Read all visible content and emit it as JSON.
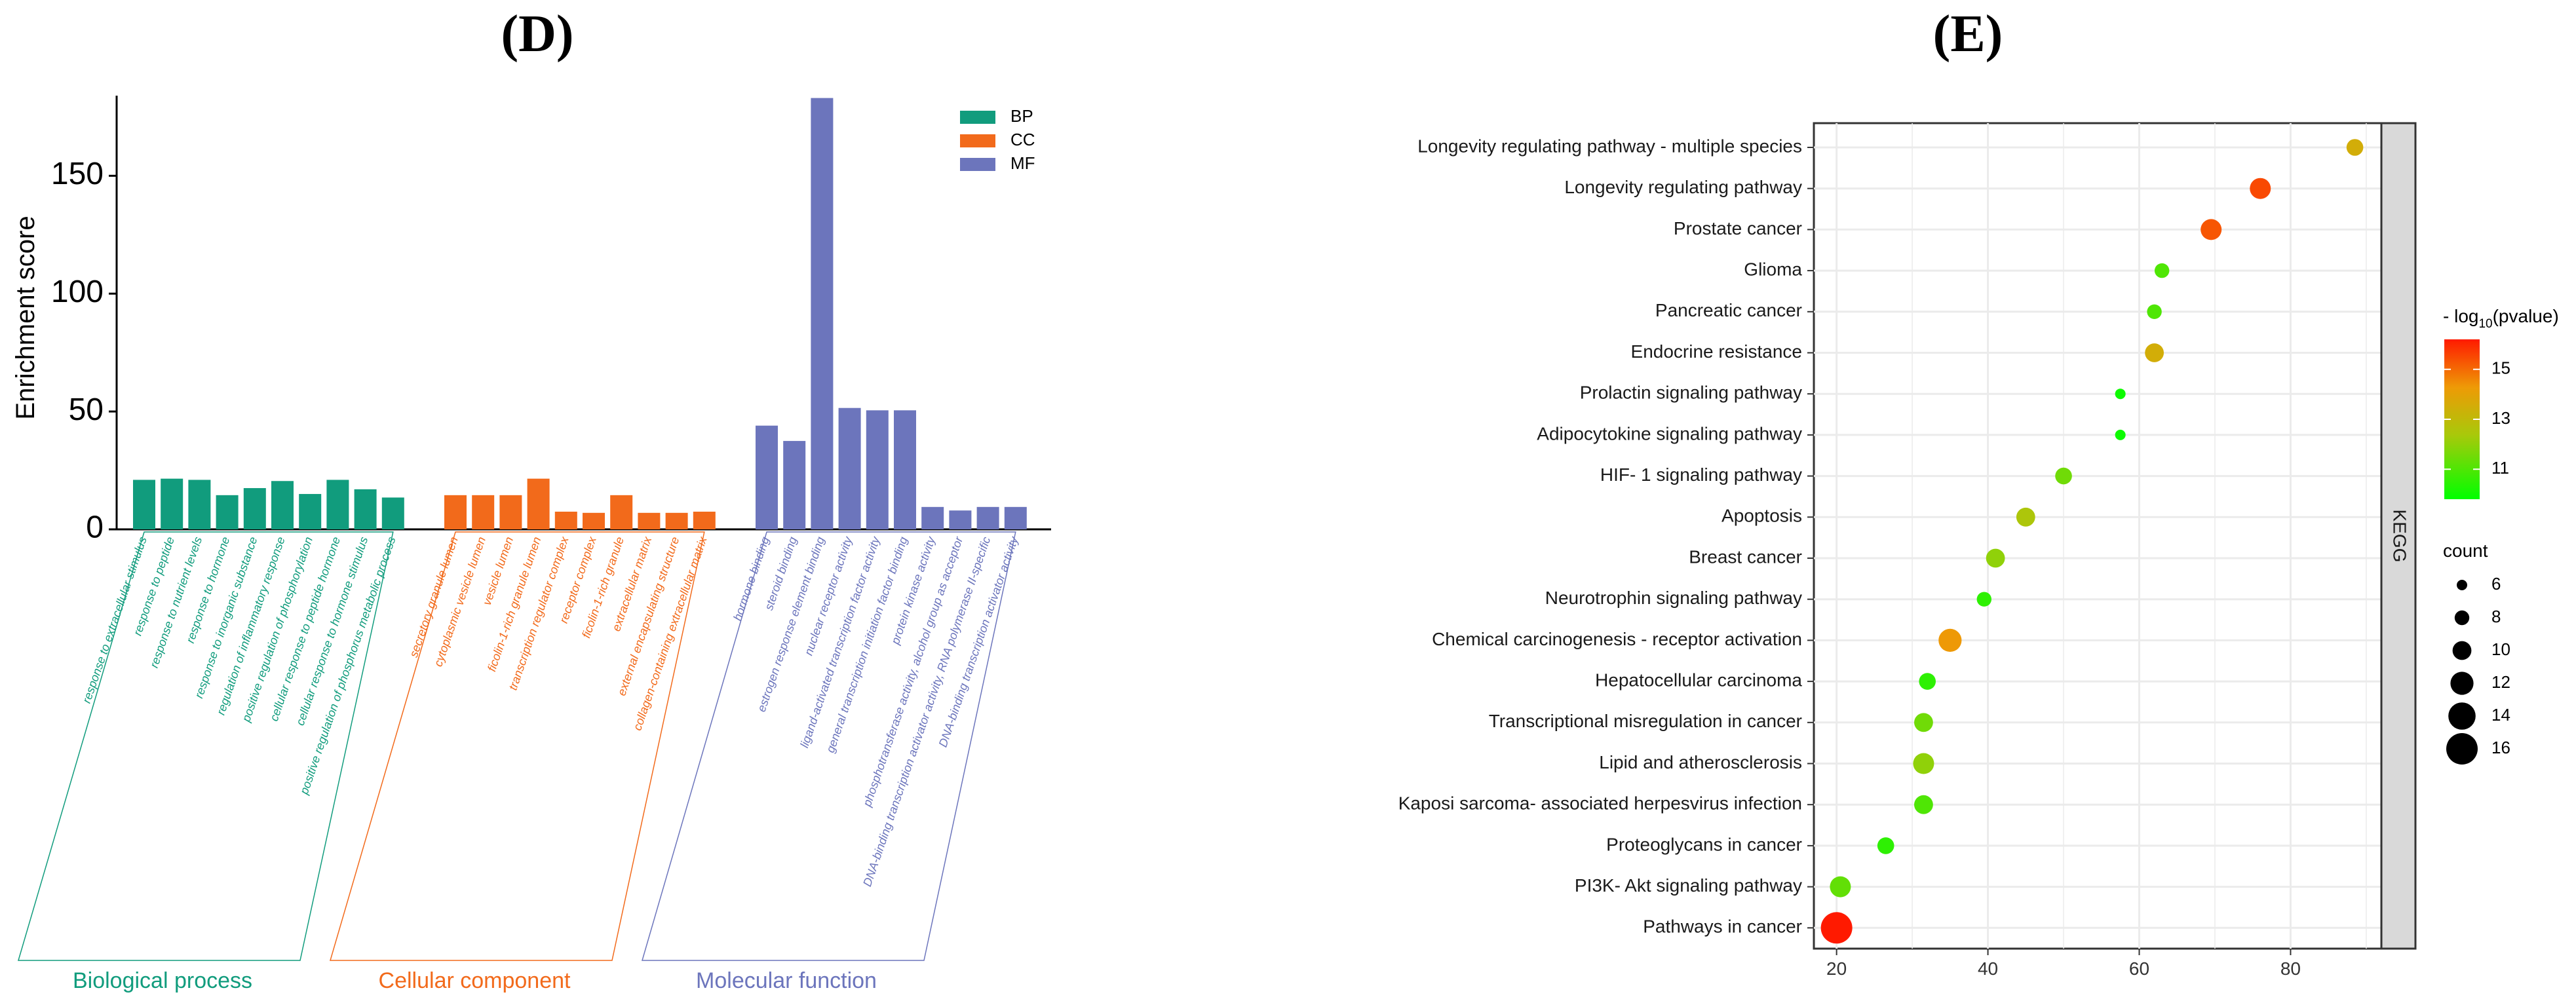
{
  "panels": {
    "d_label": "(D)",
    "e_label": "(E)"
  },
  "chart_data": [
    {
      "type": "bar",
      "title": "(D)",
      "ylabel": "Enrichment score",
      "xlabel": "",
      "ylim": [
        0,
        184
      ],
      "yticks": [
        0,
        50,
        100,
        150
      ],
      "grid": false,
      "legend_position": "top-right",
      "groups": [
        {
          "key": "BP",
          "name": "Biological process",
          "color": "#119c7d",
          "categories": [
            "response to extracellular stimulus",
            "response to peptide",
            "response to nutrient levels",
            "response to hormone",
            "response to inorganic substance",
            "regulation of inflammatory response",
            "positive regulation of phosphorylation",
            "cellular response to peptide hormone",
            "cellular response to hormone stimulus",
            "positive regulation of phosphorus metabolic process"
          ],
          "values": [
            21,
            21.5,
            21,
            14.5,
            17.5,
            20.5,
            15,
            21,
            17,
            13.5
          ]
        },
        {
          "key": "CC",
          "name": "Cellular component",
          "color": "#f26a1b",
          "categories": [
            "secretory granule lumen",
            "cytoplasmic vesicle lumen",
            "vesicle lumen",
            "ficolin-1-rich granule lumen",
            "transcription regulator complex",
            "receptor complex",
            "ficolin-1-rich granule",
            "extracellular matrix",
            "external encapsulating structure",
            "collagen-containing extracellular matrix"
          ],
          "values": [
            14.5,
            14.5,
            14.5,
            21.5,
            7.5,
            7,
            14.5,
            7,
            7,
            7.5
          ]
        },
        {
          "key": "MF",
          "name": "Molecular function",
          "color": "#6c75bc",
          "categories": [
            "hormone binding",
            "steroid binding",
            "estrogen response element binding",
            "nuclear receptor activity",
            "ligand-activated transcription factor activity",
            "general transcription initiation factor binding",
            "protein kinase activity",
            "phosphotransferase activity, alcohol group as acceptor",
            "DNA-binding transcription activator activity, RNA polymerase II-specific",
            "DNA-binding transcription activator activity"
          ],
          "values": [
            44,
            37.5,
            183,
            51.5,
            50.5,
            50.5,
            9.5,
            8,
            9.5,
            9.5
          ]
        }
      ],
      "legend": [
        {
          "label": "BP",
          "color": "#119c7d"
        },
        {
          "label": "CC",
          "color": "#f26a1b"
        },
        {
          "label": "MF",
          "color": "#6c75bc"
        }
      ]
    },
    {
      "type": "scatter",
      "title": "(E)",
      "facet_label": "KEGG",
      "xlim": [
        17,
        92
      ],
      "xticks": [
        20,
        40,
        60,
        80
      ],
      "grid": true,
      "legend_position": "right",
      "color_legend_title": {
        "prefix": "- log",
        "sub": "10",
        "suffix": "(pvalue)"
      },
      "color_ticks": [
        11,
        13,
        15
      ],
      "color_range": [
        9.8,
        16.2
      ],
      "size_legend_title": "count",
      "size_legend": [
        6,
        8,
        10,
        12,
        14,
        16
      ],
      "categories": [
        "Longevity regulating pathway -  multiple species",
        "Longevity regulating pathway",
        "Prostate cancer",
        "Glioma",
        "Pancreatic cancer",
        "Endocrine resistance",
        "Prolactin signaling pathway",
        "Adipocytokine signaling pathway",
        "HIF- 1 signaling pathway",
        "Apoptosis",
        "Breast cancer",
        "Neurotrophin signaling pathway",
        "Chemical carcinogenesis -  receptor activation",
        "Hepatocellular carcinoma",
        "Transcriptional misregulation in cancer",
        "Lipid and atherosclerosis",
        "Kaposi sarcoma- associated herpesvirus infection",
        "Proteoglycans in cancer",
        "PI3K- Akt signaling pathway",
        "Pathways in cancer"
      ],
      "x": [
        88.5,
        76,
        69.5,
        63,
        62,
        62,
        57.5,
        57.5,
        50,
        45,
        41,
        39.5,
        35,
        32,
        31.5,
        31.5,
        31.5,
        26.5,
        20.5,
        20
      ],
      "size": [
        9,
        11,
        11,
        8,
        8,
        10,
        6,
        6,
        9,
        10,
        10,
        8,
        12,
        9,
        10,
        11,
        10,
        9,
        11,
        16
      ],
      "color": [
        13.5,
        15.5,
        15.3,
        11,
        11,
        13.5,
        10,
        10,
        11.5,
        12.5,
        12,
        10.5,
        14.3,
        10.5,
        11.5,
        12,
        11,
        10.5,
        11.3,
        16.2
      ]
    }
  ]
}
